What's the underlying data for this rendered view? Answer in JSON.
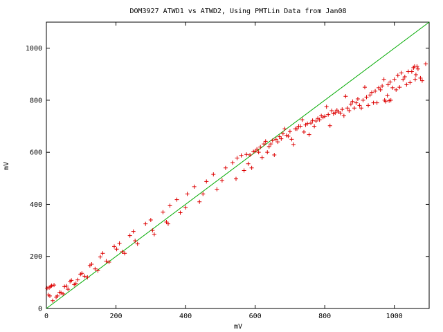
{
  "chart_data": {
    "type": "scatter",
    "title": "DOM3927 ATWD1 vs ATWD2, Using PMTLin Data from Jan08",
    "xlabel": "mV",
    "ylabel": "mV",
    "xlim": [
      0,
      1100
    ],
    "ylim": [
      0,
      1100
    ],
    "xticks": [
      0,
      200,
      400,
      600,
      800,
      1000
    ],
    "yticks": [
      0,
      200,
      400,
      600,
      800,
      1000
    ],
    "grid": false,
    "legend": "none",
    "colors": {
      "points": "#dd0000",
      "line": "#00aa00",
      "axes": "#000000"
    },
    "series": [
      {
        "kind": "line",
        "points": [
          [
            0,
            0
          ],
          [
            1100,
            1100
          ]
        ]
      },
      {
        "kind": "scatter",
        "marker": "+",
        "points": [
          [
            2,
            78
          ],
          [
            5,
            52
          ],
          [
            8,
            80
          ],
          [
            10,
            48
          ],
          [
            12,
            84
          ],
          [
            15,
            88
          ],
          [
            18,
            30
          ],
          [
            22,
            90
          ],
          [
            28,
            44
          ],
          [
            32,
            48
          ],
          [
            38,
            62
          ],
          [
            42,
            60
          ],
          [
            48,
            56
          ],
          [
            52,
            84
          ],
          [
            58,
            86
          ],
          [
            62,
            74
          ],
          [
            68,
            104
          ],
          [
            72,
            108
          ],
          [
            80,
            92
          ],
          [
            85,
            96
          ],
          [
            90,
            110
          ],
          [
            98,
            132
          ],
          [
            102,
            135
          ],
          [
            110,
            124
          ],
          [
            118,
            120
          ],
          [
            125,
            165
          ],
          [
            130,
            170
          ],
          [
            140,
            152
          ],
          [
            148,
            145
          ],
          [
            155,
            198
          ],
          [
            162,
            212
          ],
          [
            172,
            182
          ],
          [
            180,
            178
          ],
          [
            195,
            238
          ],
          [
            202,
            228
          ],
          [
            210,
            250
          ],
          [
            218,
            218
          ],
          [
            225,
            212
          ],
          [
            240,
            280
          ],
          [
            250,
            296
          ],
          [
            255,
            260
          ],
          [
            262,
            248
          ],
          [
            285,
            325
          ],
          [
            300,
            340
          ],
          [
            305,
            300
          ],
          [
            310,
            285
          ],
          [
            335,
            370
          ],
          [
            345,
            332
          ],
          [
            350,
            325
          ],
          [
            355,
            395
          ],
          [
            375,
            418
          ],
          [
            385,
            368
          ],
          [
            400,
            388
          ],
          [
            405,
            440
          ],
          [
            425,
            468
          ],
          [
            440,
            410
          ],
          [
            450,
            440
          ],
          [
            460,
            488
          ],
          [
            480,
            515
          ],
          [
            490,
            458
          ],
          [
            505,
            492
          ],
          [
            515,
            540
          ],
          [
            535,
            560
          ],
          [
            545,
            498
          ],
          [
            548,
            578
          ],
          [
            560,
            588
          ],
          [
            568,
            530
          ],
          [
            575,
            592
          ],
          [
            580,
            556
          ],
          [
            585,
            590
          ],
          [
            590,
            540
          ],
          [
            595,
            602
          ],
          [
            600,
            605
          ],
          [
            605,
            612
          ],
          [
            610,
            600
          ],
          [
            615,
            620
          ],
          [
            620,
            580
          ],
          [
            625,
            632
          ],
          [
            630,
            642
          ],
          [
            635,
            600
          ],
          [
            640,
            622
          ],
          [
            645,
            632
          ],
          [
            650,
            645
          ],
          [
            655,
            590
          ],
          [
            660,
            650
          ],
          [
            665,
            640
          ],
          [
            670,
            660
          ],
          [
            675,
            652
          ],
          [
            680,
            672
          ],
          [
            685,
            690
          ],
          [
            690,
            665
          ],
          [
            695,
            662
          ],
          [
            700,
            680
          ],
          [
            705,
            650
          ],
          [
            710,
            630
          ],
          [
            715,
            690
          ],
          [
            720,
            690
          ],
          [
            725,
            700
          ],
          [
            730,
            700
          ],
          [
            735,
            725
          ],
          [
            740,
            678
          ],
          [
            745,
            705
          ],
          [
            750,
            710
          ],
          [
            755,
            668
          ],
          [
            760,
            712
          ],
          [
            765,
            722
          ],
          [
            770,
            700
          ],
          [
            775,
            720
          ],
          [
            780,
            730
          ],
          [
            785,
            725
          ],
          [
            790,
            740
          ],
          [
            795,
            735
          ],
          [
            800,
            738
          ],
          [
            805,
            775
          ],
          [
            810,
            745
          ],
          [
            815,
            702
          ],
          [
            820,
            760
          ],
          [
            825,
            748
          ],
          [
            830,
            752
          ],
          [
            835,
            762
          ],
          [
            840,
            755
          ],
          [
            845,
            750
          ],
          [
            850,
            765
          ],
          [
            855,
            740
          ],
          [
            860,
            815
          ],
          [
            865,
            770
          ],
          [
            870,
            760
          ],
          [
            875,
            785
          ],
          [
            880,
            795
          ],
          [
            885,
            770
          ],
          [
            890,
            790
          ],
          [
            895,
            805
          ],
          [
            900,
            780
          ],
          [
            905,
            770
          ],
          [
            910,
            800
          ],
          [
            915,
            850
          ],
          [
            920,
            812
          ],
          [
            925,
            780
          ],
          [
            930,
            820
          ],
          [
            935,
            830
          ],
          [
            940,
            790
          ],
          [
            945,
            835
          ],
          [
            950,
            790
          ],
          [
            955,
            848
          ],
          [
            960,
            840
          ],
          [
            965,
            855
          ],
          [
            970,
            880
          ],
          [
            972,
            800
          ],
          [
            975,
            795
          ],
          [
            980,
            818
          ],
          [
            982,
            860
          ],
          [
            985,
            798
          ],
          [
            988,
            870
          ],
          [
            990,
            800
          ],
          [
            995,
            848
          ],
          [
            1000,
            880
          ],
          [
            1005,
            840
          ],
          [
            1010,
            895
          ],
          [
            1015,
            850
          ],
          [
            1020,
            905
          ],
          [
            1025,
            880
          ],
          [
            1030,
            890
          ],
          [
            1035,
            860
          ],
          [
            1040,
            910
          ],
          [
            1045,
            868
          ],
          [
            1050,
            910
          ],
          [
            1055,
            925
          ],
          [
            1058,
            930
          ],
          [
            1060,
            880
          ],
          [
            1062,
            898
          ],
          [
            1065,
            930
          ],
          [
            1068,
            920
          ],
          [
            1075,
            885
          ],
          [
            1080,
            875
          ],
          [
            1090,
            940
          ]
        ]
      }
    ]
  }
}
